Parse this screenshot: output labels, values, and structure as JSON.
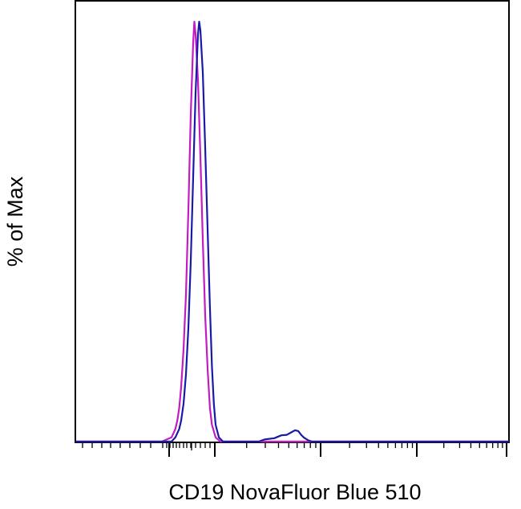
{
  "chart_data": {
    "type": "line",
    "title": "",
    "xlabel": "CD19 NovaFluor Blue 510",
    "ylabel": "% of Max",
    "x_scale": "log (biexponential display)",
    "x_tick_labels": [],
    "y_tick_labels": [],
    "ylim": [
      0,
      100
    ],
    "grid": false,
    "legend": "none",
    "series": [
      {
        "color": "#c21cc2",
        "points": [
          [
            -10,
            0
          ],
          [
            -5,
            1
          ],
          [
            -3,
            3
          ],
          [
            -2,
            5
          ],
          [
            -1,
            8
          ],
          [
            0,
            13
          ],
          [
            1,
            22
          ],
          [
            2,
            35
          ],
          [
            3,
            55
          ],
          [
            4,
            78
          ],
          [
            5,
            95
          ],
          [
            5.5,
            100
          ],
          [
            6,
            97
          ],
          [
            7,
            86
          ],
          [
            8,
            68
          ],
          [
            9,
            48
          ],
          [
            10,
            30
          ],
          [
            11,
            17
          ],
          [
            12,
            8
          ],
          [
            13,
            4
          ],
          [
            15,
            1
          ],
          [
            18,
            0
          ]
        ]
      },
      {
        "color": "#1a1aa8",
        "points": [
          [
            -10,
            0
          ],
          [
            -5,
            0
          ],
          [
            -3,
            1
          ],
          [
            -1,
            3
          ],
          [
            0,
            5
          ],
          [
            1,
            9
          ],
          [
            2,
            16
          ],
          [
            3,
            27
          ],
          [
            4,
            43
          ],
          [
            5,
            63
          ],
          [
            6,
            83
          ],
          [
            7,
            97
          ],
          [
            7.5,
            100
          ],
          [
            8,
            98
          ],
          [
            9,
            88
          ],
          [
            10,
            70
          ],
          [
            11,
            50
          ],
          [
            12,
            32
          ],
          [
            13,
            18
          ],
          [
            14,
            9
          ],
          [
            15,
            4
          ],
          [
            17,
            1
          ],
          [
            20,
            0
          ],
          [
            80,
            0
          ],
          [
            100,
            0.5
          ],
          [
            150,
            0.8
          ],
          [
            200,
            1.5
          ],
          [
            250,
            1.6
          ],
          [
            300,
            2.2
          ],
          [
            350,
            2.7
          ],
          [
            400,
            2.5
          ],
          [
            450,
            1.6
          ],
          [
            500,
            1.0
          ],
          [
            600,
            0.3
          ],
          [
            700,
            0
          ],
          [
            10000,
            0
          ],
          [
            100000,
            0
          ]
        ]
      }
    ]
  }
}
